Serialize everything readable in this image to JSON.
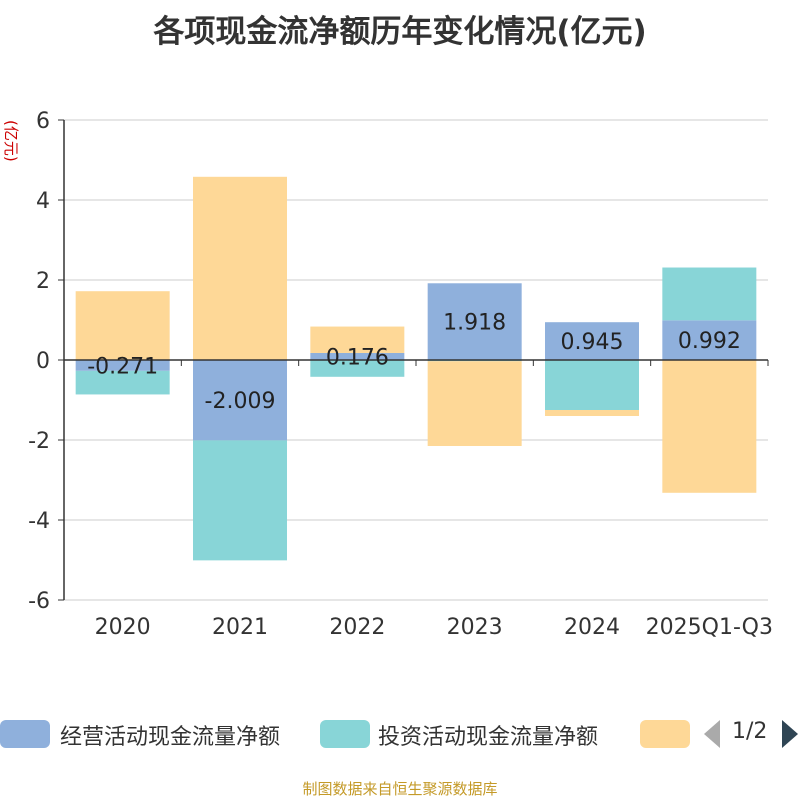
{
  "chart_data": {
    "type": "bar",
    "stacked": true,
    "title": "各项现金流净额历年变化情况(亿元)",
    "ylabel": "(亿元)",
    "ylim": [
      -6,
      6
    ],
    "yticks": [
      6,
      4,
      2,
      0,
      -2,
      -4,
      -6
    ],
    "categories": [
      "2020",
      "2021",
      "2022",
      "2023",
      "2024",
      "2025Q1-Q3"
    ],
    "series": [
      {
        "name": "经营活动现金流量净额",
        "color": "#8fb0dc",
        "values": [
          -0.271,
          -2.009,
          0.176,
          1.918,
          0.945,
          0.992
        ],
        "labels": [
          "-0.271",
          "-2.009",
          "0.176",
          "1.918",
          "0.945",
          "0.992"
        ]
      },
      {
        "name": "投资活动现金流量净额",
        "color": "#88d5d7",
        "values": [
          -0.59,
          -3.0,
          -0.42,
          -0.03,
          -1.25,
          1.32
        ]
      },
      {
        "name": "",
        "color": "#fed897",
        "values": [
          1.72,
          4.58,
          0.66,
          -2.12,
          -0.15,
          -3.32
        ]
      }
    ],
    "legend_page": "1/2"
  },
  "source": "制图数据来自恒生聚源数据库"
}
